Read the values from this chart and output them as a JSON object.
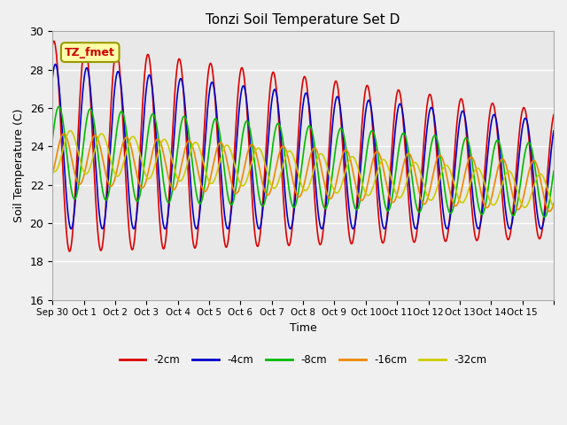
{
  "title": "Tonzi Soil Temperature Set D",
  "xlabel": "Time",
  "ylabel": "Soil Temperature (C)",
  "ylim": [
    16,
    30
  ],
  "xlim": [
    0,
    16
  ],
  "annotation": "TZ_fmet",
  "fig_bg": "#f0f0f0",
  "plot_bg": "#e8e8e8",
  "line_colors": {
    "-2cm": "#dd0000",
    "-4cm": "#0000cc",
    "-8cm": "#00bb00",
    "-16cm": "#ee8800",
    "-32cm": "#cccc00"
  },
  "legend_labels": [
    "-2cm",
    "-4cm",
    "-8cm",
    "-16cm",
    "-32cm"
  ],
  "xtick_positions": [
    0,
    1,
    2,
    3,
    4,
    5,
    6,
    7,
    8,
    9,
    10,
    11,
    12,
    13,
    14,
    15,
    16
  ],
  "xtick_labels": [
    "Sep 30",
    "Oct 1",
    "Oct 2",
    "Oct 3",
    "Oct 4",
    "Oct 5",
    "Oct 6",
    "Oct 7",
    "Oct 8",
    "Oct 9",
    "Oct 10",
    "Oct 11",
    "Oct 12",
    "Oct 13",
    "Oct 14",
    "Oct 15",
    ""
  ],
  "ytick_positions": [
    16,
    18,
    20,
    22,
    24,
    26,
    28,
    30
  ],
  "grid_color": "#ffffff",
  "line_width": 1.2
}
